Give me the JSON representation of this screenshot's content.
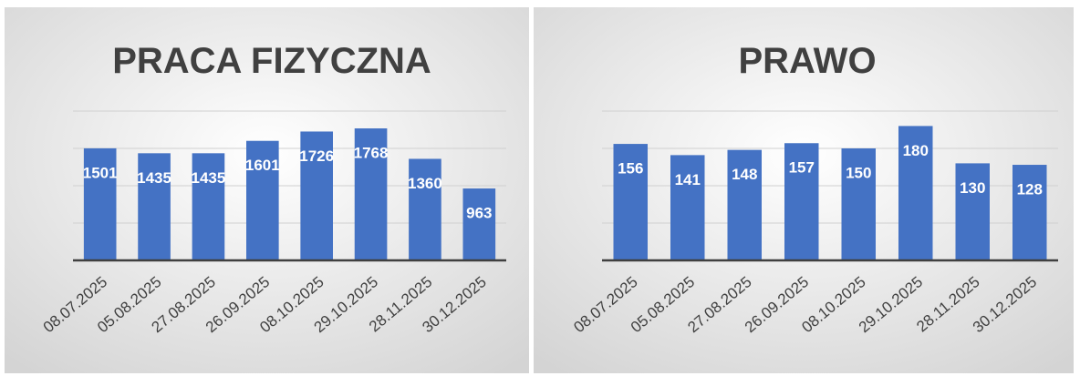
{
  "chart_data": [
    {
      "type": "bar",
      "title": "PRACA FIZYCZNA",
      "categories": [
        "08.07.2025",
        "05.08.2025",
        "27.08.2025",
        "26.09.2025",
        "08.10.2025",
        "29.10.2025",
        "28.11.2025",
        "30.12.2025"
      ],
      "values": [
        1501,
        1435,
        1435,
        1601,
        1726,
        1768,
        1360,
        963
      ],
      "color": "#4472c4",
      "ylim": [
        0,
        2000
      ],
      "yticks": [
        0,
        500,
        1000,
        1500,
        2000
      ],
      "grid": true
    },
    {
      "type": "bar",
      "title": "PRAWO",
      "categories": [
        "08.07.2025",
        "05.08.2025",
        "27.08.2025",
        "26.09.2025",
        "08.10.2025",
        "29.10.2025",
        "28.11.2025",
        "30.12.2025"
      ],
      "values": [
        156,
        141,
        148,
        157,
        150,
        180,
        130,
        128
      ],
      "color": "#4472c4",
      "ylim": [
        0,
        200
      ],
      "yticks": [
        0,
        50,
        100,
        150,
        200
      ],
      "grid": true
    }
  ]
}
